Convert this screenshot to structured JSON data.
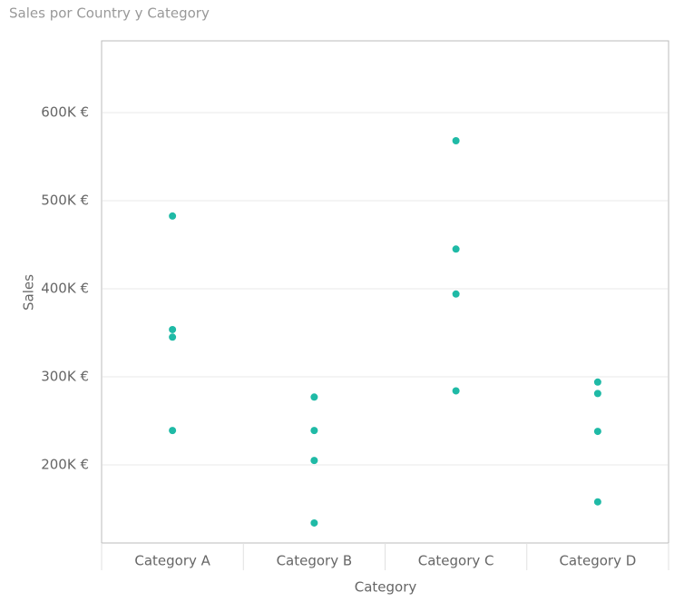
{
  "chart_data": {
    "type": "scatter",
    "title": "Sales por Country y Category",
    "x_label": "Category",
    "y_label": "Sales",
    "categories": [
      "Category A",
      "Category B",
      "Category C",
      "Category D"
    ],
    "values": [
      [
        482500,
        353600,
        345000,
        239000
      ],
      [
        277000,
        239000,
        205000,
        134000
      ],
      [
        568000,
        445000,
        394000,
        284000
      ],
      [
        294000,
        281000,
        238000,
        158000
      ]
    ],
    "color": "#1fbaa6",
    "ylim": [
      111300,
      681400
    ],
    "yticks": [
      {
        "value": 200000,
        "label": "200K €"
      },
      {
        "value": 300000,
        "label": "300K €"
      },
      {
        "value": 400000,
        "label": "400K €"
      },
      {
        "value": 500000,
        "label": "500K €"
      },
      {
        "value": 600000,
        "label": "600K €"
      }
    ],
    "grid": true
  }
}
